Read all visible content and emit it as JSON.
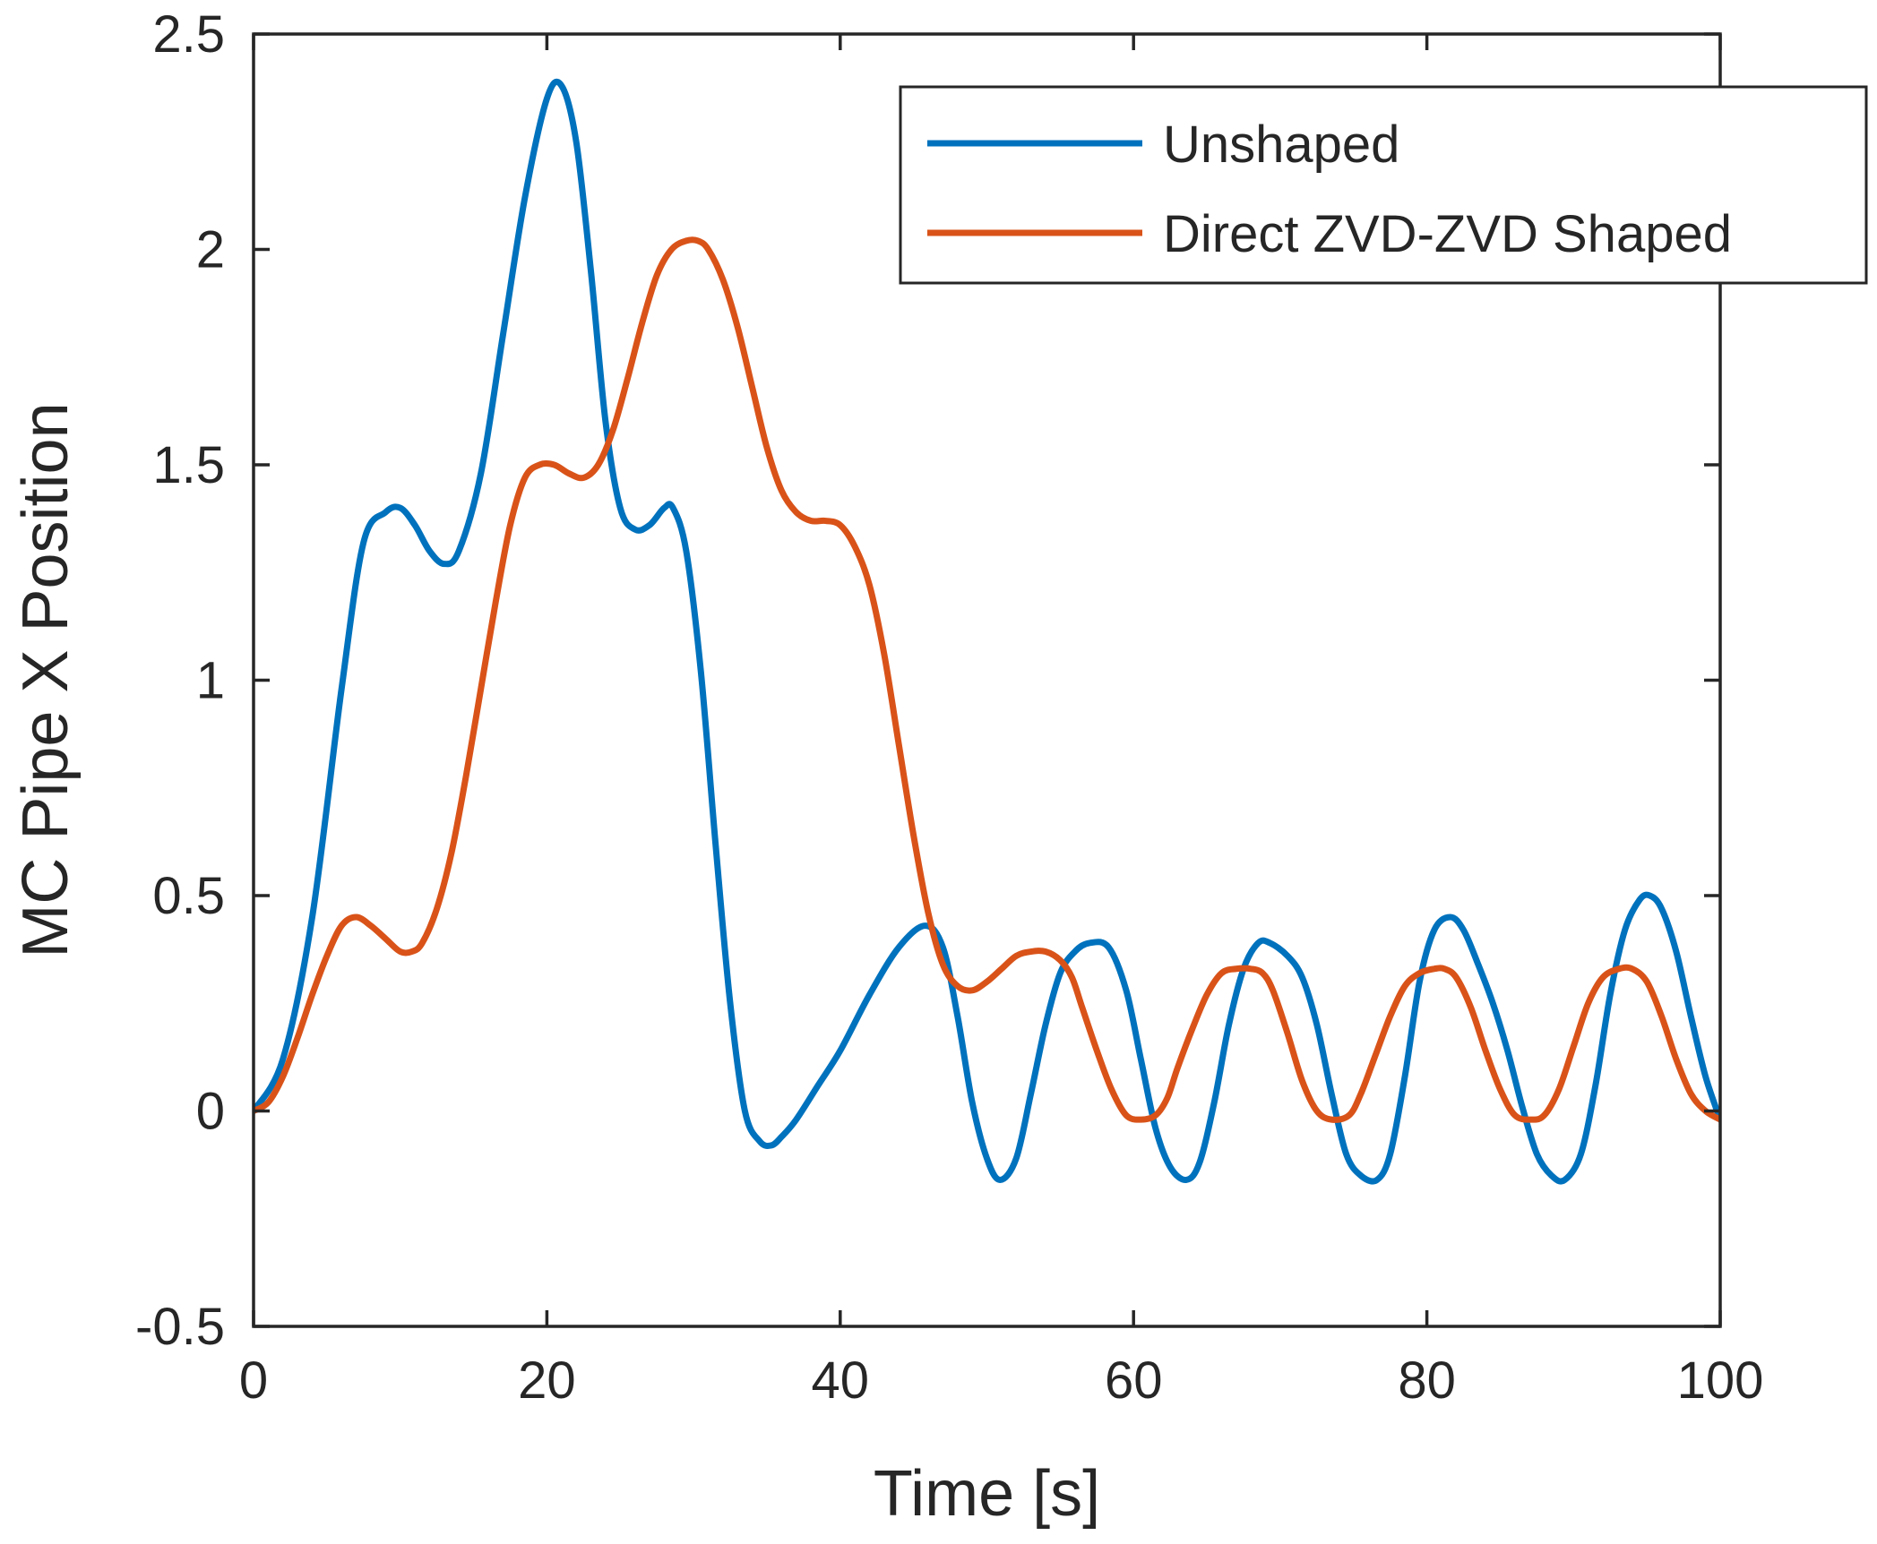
{
  "chart_data": {
    "type": "line",
    "title": "",
    "xlabel": "Time [s]",
    "ylabel": "MC Pipe X Position",
    "xlim": [
      0,
      100
    ],
    "ylim": [
      -0.5,
      2.5
    ],
    "xticks": [
      0,
      20,
      40,
      60,
      80,
      100
    ],
    "yticks": [
      -0.5,
      0,
      0.5,
      1,
      1.5,
      2,
      2.5
    ],
    "xtick_labels": [
      "0",
      "20",
      "40",
      "60",
      "80",
      "100"
    ],
    "ytick_labels": [
      "-0.5",
      "0",
      "0.5",
      "1",
      "1.5",
      "2",
      "2.5"
    ],
    "grid": false,
    "legend_position": "top-right",
    "series": [
      {
        "name": "Unshaped",
        "color": "#0072BD",
        "x": [
          0,
          2,
          4,
          6,
          7.5,
          9,
          10,
          11,
          12,
          13,
          14,
          15.5,
          17,
          18.5,
          20,
          21,
          22,
          23,
          24,
          25,
          26,
          27,
          28,
          28.6,
          29.5,
          30.5,
          31.5,
          32.5,
          33.5,
          34.5,
          35.3,
          36,
          37,
          38.5,
          40,
          42,
          44,
          45.8,
          47,
          48,
          49,
          50,
          50.9,
          52,
          53,
          54,
          55,
          56,
          57,
          58.3,
          59.5,
          60.5,
          61.5,
          62.5,
          63.6,
          64.5,
          65.5,
          66.5,
          67.5,
          68.5,
          69.3,
          70.5,
          71.5,
          72.5,
          73.5,
          74.5,
          75.5,
          76.6,
          77.5,
          78.5,
          79.5,
          80.5,
          81.6,
          82.5,
          83.5,
          84.5,
          85.5,
          86.5,
          87.5,
          88.5,
          89.4,
          90.5,
          91.5,
          92.5,
          93.5,
          94.5,
          95.2,
          96,
          97,
          98,
          99,
          100
        ],
        "values": [
          0,
          0.12,
          0.45,
          0.98,
          1.32,
          1.39,
          1.4,
          1.36,
          1.3,
          1.27,
          1.3,
          1.48,
          1.8,
          2.12,
          2.35,
          2.38,
          2.25,
          1.95,
          1.6,
          1.4,
          1.35,
          1.36,
          1.4,
          1.4,
          1.3,
          1.02,
          0.62,
          0.25,
          0.0,
          -0.07,
          -0.08,
          -0.06,
          -0.02,
          0.06,
          0.14,
          0.27,
          0.38,
          0.43,
          0.38,
          0.22,
          0.02,
          -0.11,
          -0.16,
          -0.11,
          0.04,
          0.2,
          0.32,
          0.37,
          0.39,
          0.38,
          0.28,
          0.12,
          -0.04,
          -0.13,
          -0.16,
          -0.12,
          0.02,
          0.2,
          0.33,
          0.39,
          0.39,
          0.36,
          0.31,
          0.2,
          0.04,
          -0.1,
          -0.15,
          -0.16,
          -0.1,
          0.08,
          0.3,
          0.42,
          0.45,
          0.42,
          0.34,
          0.25,
          0.14,
          0.01,
          -0.1,
          -0.15,
          -0.16,
          -0.1,
          0.06,
          0.27,
          0.42,
          0.49,
          0.5,
          0.47,
          0.37,
          0.22,
          0.08,
          -0.02
        ]
      },
      {
        "name": "Direct ZVD-ZVD Shaped",
        "color": "#D95319",
        "x": [
          0,
          1,
          2,
          3,
          4,
          5,
          6,
          7,
          8,
          9,
          10,
          10.8,
          11.5,
          12.5,
          13.5,
          14.5,
          15.5,
          16.5,
          17.5,
          18.5,
          19.5,
          20.5,
          21.5,
          22.5,
          23.5,
          24.5,
          25.5,
          26.5,
          27.5,
          28.5,
          29.5,
          30.3,
          31,
          32,
          33,
          34,
          35,
          36,
          37,
          38,
          39,
          40,
          41,
          42,
          43,
          44,
          45,
          46,
          47,
          48,
          49,
          50,
          51,
          52,
          53,
          54,
          55,
          55.8,
          56.5,
          57.5,
          58.5,
          59.5,
          60.5,
          61.5,
          62.3,
          63,
          64,
          65,
          66,
          67,
          68,
          68.8,
          69.5,
          70.5,
          71.5,
          72.5,
          73.5,
          74.7,
          75.5,
          76.5,
          77.5,
          78.5,
          79.5,
          80.5,
          81.2,
          82,
          83,
          84,
          85,
          86,
          87.1,
          88,
          89,
          90,
          91,
          92,
          93.1,
          94,
          95,
          96,
          97,
          98,
          99,
          100
        ],
        "values": [
          0,
          0.02,
          0.08,
          0.17,
          0.27,
          0.36,
          0.43,
          0.45,
          0.43,
          0.4,
          0.37,
          0.37,
          0.39,
          0.47,
          0.6,
          0.78,
          0.98,
          1.18,
          1.36,
          1.47,
          1.5,
          1.5,
          1.48,
          1.47,
          1.5,
          1.58,
          1.7,
          1.83,
          1.94,
          2.0,
          2.02,
          2.02,
          2.0,
          1.93,
          1.82,
          1.68,
          1.54,
          1.44,
          1.39,
          1.37,
          1.37,
          1.36,
          1.31,
          1.22,
          1.06,
          0.85,
          0.64,
          0.46,
          0.34,
          0.29,
          0.28,
          0.3,
          0.33,
          0.36,
          0.37,
          0.37,
          0.35,
          0.31,
          0.24,
          0.14,
          0.05,
          -0.01,
          -0.02,
          -0.01,
          0.03,
          0.1,
          0.19,
          0.27,
          0.32,
          0.33,
          0.33,
          0.32,
          0.28,
          0.18,
          0.07,
          0.0,
          -0.02,
          -0.01,
          0.04,
          0.13,
          0.22,
          0.29,
          0.32,
          0.33,
          0.33,
          0.31,
          0.24,
          0.14,
          0.05,
          -0.01,
          -0.02,
          -0.01,
          0.05,
          0.15,
          0.25,
          0.31,
          0.33,
          0.33,
          0.3,
          0.22,
          0.12,
          0.04,
          0.0,
          -0.02
        ]
      }
    ]
  }
}
